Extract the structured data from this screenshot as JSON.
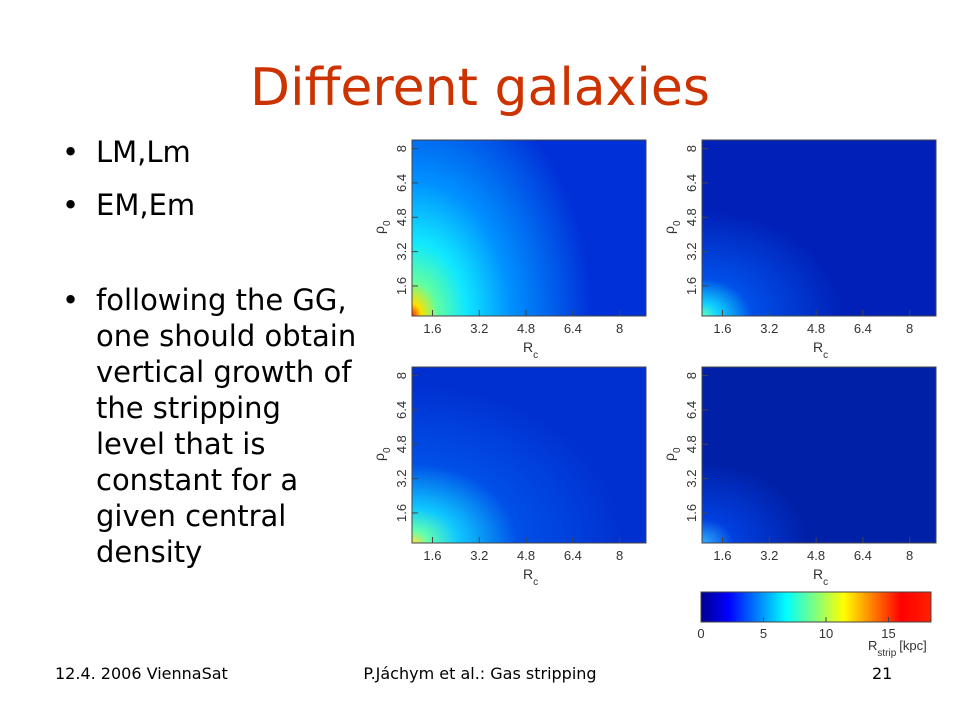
{
  "title": "Different galaxies",
  "bullets": [
    "LM,Lm",
    "EM,Em",
    "following the GG, one should obtain vertical growth of the stripping level that is constant for a given central density"
  ],
  "panel_axes": {
    "xlabel": "R",
    "xlabel_sub": "c",
    "ylabel": "ρ",
    "ylabel_sub": "0",
    "xlim": [
      0.9,
      8.9
    ],
    "ylim": [
      0.2,
      8.4
    ],
    "xticks": [
      1.6,
      3.2,
      4.8,
      6.4,
      8
    ],
    "yticks": [
      1.6,
      3.2,
      4.8,
      6.4,
      8
    ]
  },
  "colorbar": {
    "lim": [
      0,
      18.4
    ],
    "ticks": [
      0,
      5,
      10,
      15
    ],
    "label": "R",
    "label_sub": "strip",
    "unit": "[kpc]"
  },
  "footer": {
    "left": "12.4. 2006 ViennaSat",
    "center": "P.Jáchym et al.: Gas stripping",
    "right": "21"
  }
}
